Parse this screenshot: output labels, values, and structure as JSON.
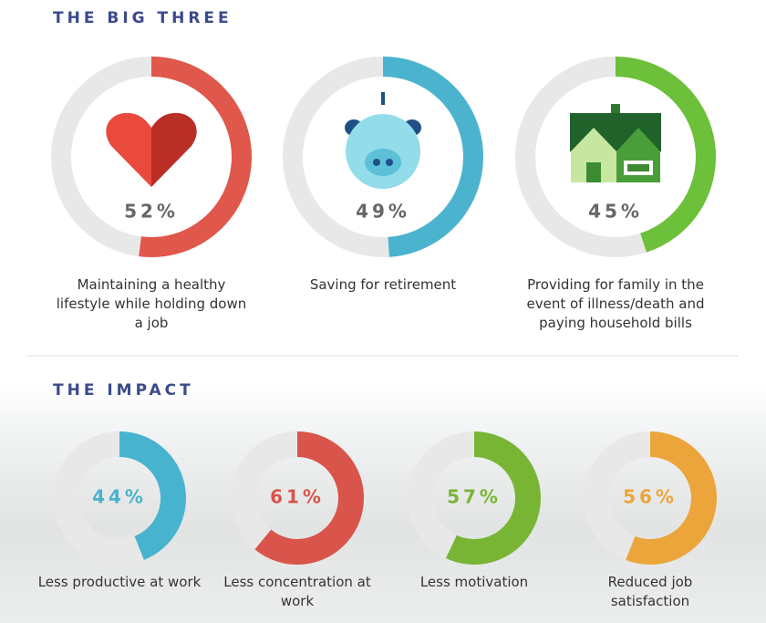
{
  "chart_data": [
    {
      "type": "donut",
      "title": "THE BIG THREE",
      "categories": [
        "Maintaining a healthy lifestyle while holding down a job",
        "Saving for retirement",
        "Providing for family in the event of illness/death and paying household bills"
      ],
      "values": [
        52,
        49,
        45
      ],
      "value_labels": [
        "52%",
        "49%",
        "45%"
      ],
      "colors": [
        "#e0574b",
        "#4cb3cf",
        "#6cc03a"
      ]
    },
    {
      "type": "donut",
      "title": "THE IMPACT",
      "categories": [
        "Less productive at work",
        "Less concentration at work",
        "Less motivation",
        "Reduced job satisfaction"
      ],
      "values": [
        44,
        61,
        57,
        56
      ],
      "value_labels": [
        "44%",
        "61%",
        "57%",
        "56%"
      ],
      "colors": [
        "#48b3cf",
        "#d9544a",
        "#78b534",
        "#eba53a"
      ]
    }
  ]
}
